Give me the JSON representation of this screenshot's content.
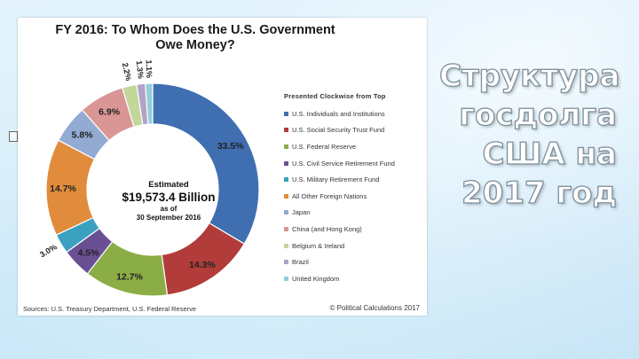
{
  "slide": {
    "title": "Структура госдолга США на 2017 год"
  },
  "chart_data": {
    "type": "pie",
    "title": "FY 2016: To Whom Does the U.S. Government Owe Money?",
    "legend_header": "Presented Clockwise from Top",
    "legend_position": "right",
    "center_text": {
      "line1": "Estimated",
      "line2": "$19,573.4 Billion",
      "line3": "as of",
      "line4": "30 September 2016"
    },
    "slices": [
      {
        "label": "U.S. Individuals and Institutions",
        "value": 33.5,
        "value_label": "33.5%",
        "color": "#3f6fb1"
      },
      {
        "label": "U.S. Social Security Trust Fund",
        "value": 14.3,
        "value_label": "14.3%",
        "color": "#b23c3a"
      },
      {
        "label": "U.S. Federal Reserve",
        "value": 12.7,
        "value_label": "12.7%",
        "color": "#8bad46"
      },
      {
        "label": "U.S. Civil Service Retirement Fund",
        "value": 4.5,
        "value_label": "4.5%",
        "color": "#6b4f93"
      },
      {
        "label": "U.S. Military Retirement Fund",
        "value": 3.0,
        "value_label": "3.0%",
        "color": "#3ba0bf"
      },
      {
        "label": "All Other Foreign Nations",
        "value": 14.7,
        "value_label": "14.7%",
        "color": "#e08c3c"
      },
      {
        "label": "Japan",
        "value": 5.8,
        "value_label": "5.8%",
        "color": "#93abd3"
      },
      {
        "label": "China (and Hong Kong)",
        "value": 6.9,
        "value_label": "6.9%",
        "color": "#d99695"
      },
      {
        "label": "Belgium & Ireland",
        "value": 2.2,
        "value_label": "2.2%",
        "color": "#c3d79b"
      },
      {
        "label": "Brazil",
        "value": 1.3,
        "value_label": "1.3%",
        "color": "#b3a2c7"
      },
      {
        "label": "United Kingdom",
        "value": 1.1,
        "value_label": "1.1%",
        "color": "#92cddc"
      }
    ],
    "source": "Sources: U.S. Treasury Department, U.S. Federal Reserve",
    "copyright": "© Political Calculations 2017"
  }
}
